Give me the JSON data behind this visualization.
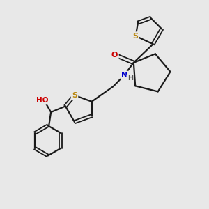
{
  "bg_color": "#e8e8e8",
  "bond_color": "#1a1a1a",
  "S_color": "#b8860b",
  "O_color": "#cc0000",
  "N_color": "#0000cc",
  "H_color": "#555555",
  "figsize": [
    3.0,
    3.0
  ],
  "dpi": 100,
  "xlim": [
    0,
    10
  ],
  "ylim": [
    0,
    10
  ]
}
